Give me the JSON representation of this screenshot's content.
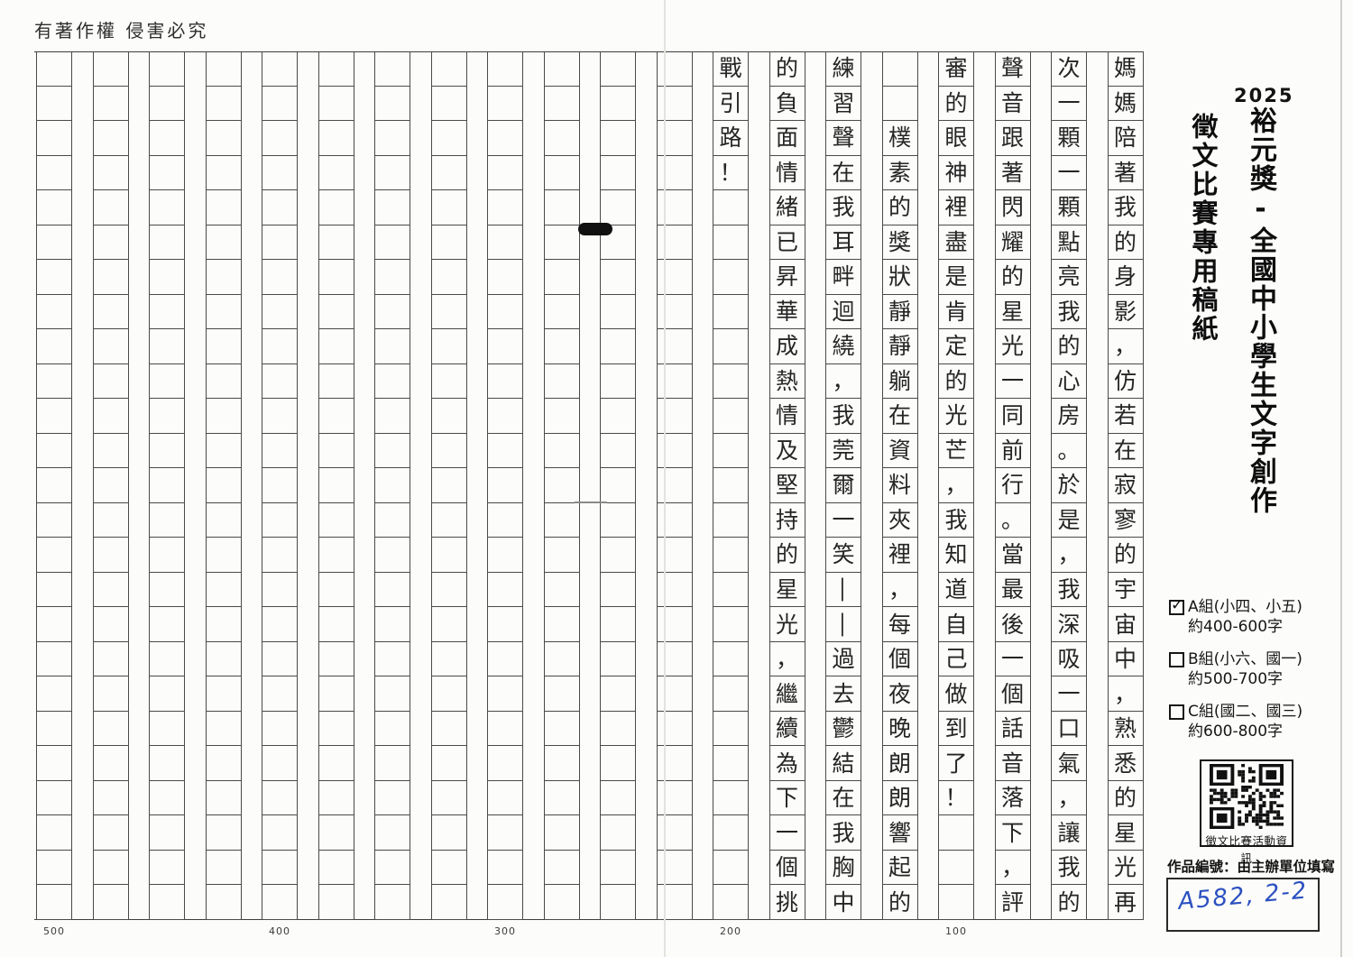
{
  "page": {
    "copyright_notice": "有著作權 侵害必究"
  },
  "sidebar": {
    "year": "2025",
    "title_main": "裕元獎-全國中小學生文字創作",
    "title_sub": "徵文比賽專用稿紙",
    "groups": [
      {
        "checked": true,
        "label": "A組(小四、小五)",
        "range": "約400-600字"
      },
      {
        "checked": false,
        "label": "B組(小六、國一)",
        "range": "約500-700字"
      },
      {
        "checked": false,
        "label": "C組(國二、國三)",
        "range": "約600-800字"
      }
    ],
    "qr_caption": "徵文比賽活動資訊",
    "entry_code_label": "作品編號：由主辦單位填寫",
    "entry_code_value": "A582, 2-2"
  },
  "manuscript": {
    "columns_total": 20,
    "rows_per_column": 25,
    "writing_direction": "vertical-right-to-left",
    "counter_labels": [
      "500",
      "400",
      "300",
      "200",
      "100"
    ],
    "columns": [
      [
        "媽",
        "媽",
        "陪",
        "著",
        "我",
        "的",
        "身",
        "影",
        "，",
        "仿",
        "若",
        "在",
        "寂",
        "寥",
        "的",
        "宇",
        "宙",
        "中",
        "，",
        "熟",
        "悉",
        "的",
        "星",
        "光",
        "再"
      ],
      [
        "次",
        "一",
        "顆",
        "一",
        "顆",
        "點",
        "亮",
        "我",
        "的",
        "心",
        "房",
        "。",
        "於",
        "是",
        "，",
        "我",
        "深",
        "吸",
        "一",
        "口",
        "氣",
        "，",
        "讓",
        "我",
        "的"
      ],
      [
        "聲",
        "音",
        "跟",
        "著",
        "閃",
        "耀",
        "的",
        "星",
        "光",
        "一",
        "同",
        "前",
        "行",
        "。",
        "當",
        "最",
        "後",
        "一",
        "個",
        "話",
        "音",
        "落",
        "下",
        "，",
        "評"
      ],
      [
        "審",
        "的",
        "眼",
        "神",
        "裡",
        "盡",
        "是",
        "肯",
        "定",
        "的",
        "光",
        "芒",
        "，",
        "我",
        "知",
        "道",
        "自",
        "己",
        "做",
        "到",
        "了",
        "！",
        "",
        "",
        ""
      ],
      [
        "",
        "",
        "樸",
        "素",
        "的",
        "獎",
        "狀",
        "靜",
        "靜",
        "躺",
        "在",
        "資",
        "料",
        "夾",
        "裡",
        "，",
        "每",
        "個",
        "夜",
        "晚",
        "朗",
        "朗",
        "響",
        "起",
        "的"
      ],
      [
        "練",
        "習",
        "聲",
        "在",
        "我",
        "耳",
        "畔",
        "迴",
        "繞",
        "，",
        "我",
        "莞",
        "爾",
        "一",
        "笑",
        "—",
        "—",
        "過",
        "去",
        "鬱",
        "結",
        "在",
        "我",
        "胸",
        "中"
      ],
      [
        "的",
        "負",
        "面",
        "情",
        "緒",
        "已",
        "昇",
        "華",
        "成",
        "熱",
        "情",
        "及",
        "堅",
        "持",
        "的",
        "星",
        "光",
        "，",
        "繼",
        "續",
        "為",
        "下",
        "一",
        "個",
        "挑"
      ],
      [
        "戰",
        "引",
        "路",
        "！",
        "",
        "",
        "",
        "",
        "",
        "",
        "",
        "",
        "",
        "",
        "",
        "",
        "",
        "",
        "",
        "",
        "",
        "",
        "",
        "",
        ""
      ]
    ]
  }
}
